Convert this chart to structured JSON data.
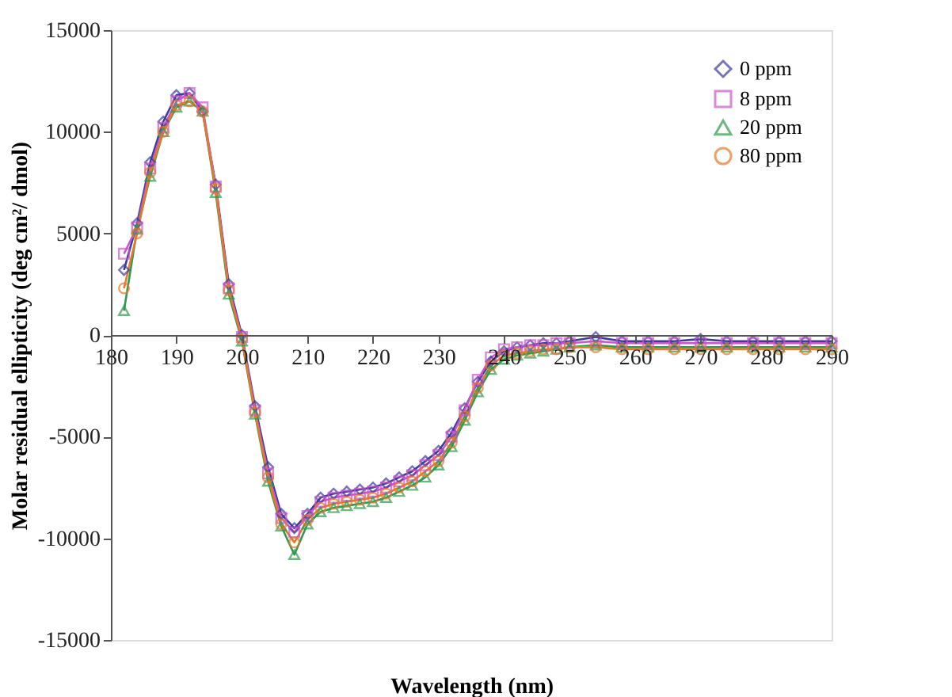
{
  "chart_data": {
    "type": "line",
    "xlabel": "Wavelength (nm)",
    "ylabel": "Molar residual ellipticity (deg cm²/ dmol)",
    "x": [
      182,
      184,
      186,
      188,
      190,
      192,
      194,
      196,
      198,
      200,
      202,
      204,
      206,
      208,
      210,
      212,
      214,
      216,
      218,
      220,
      222,
      224,
      226,
      228,
      230,
      232,
      234,
      236,
      238,
      240,
      242,
      244,
      246,
      248,
      250,
      254,
      258,
      262,
      266,
      270,
      274,
      278,
      282,
      286,
      290
    ],
    "series": [
      {
        "name": "0 ppm",
        "color": "#3c3c9c",
        "marker": "diamond",
        "values": [
          3200,
          5500,
          8500,
          10500,
          11800,
          11900,
          11000,
          7400,
          2500,
          0,
          -3500,
          -6500,
          -8800,
          -9500,
          -8800,
          -8000,
          -7800,
          -7700,
          -7600,
          -7500,
          -7300,
          -7000,
          -6700,
          -6200,
          -5700,
          -4800,
          -3600,
          -2300,
          -1300,
          -800,
          -600,
          -500,
          -400,
          -400,
          -300,
          -100,
          -300,
          -300,
          -300,
          -200,
          -300,
          -300,
          -300,
          -300,
          -300
        ]
      },
      {
        "name": "8 ppm",
        "color": "#cc55cc",
        "marker": "square",
        "values": [
          4000,
          5300,
          8200,
          10200,
          11500,
          11900,
          11200,
          7300,
          2300,
          -100,
          -3700,
          -6800,
          -9000,
          -9700,
          -8900,
          -8200,
          -8000,
          -7900,
          -7800,
          -7700,
          -7500,
          -7200,
          -6900,
          -6400,
          -5900,
          -5000,
          -3700,
          -2200,
          -1100,
          -700,
          -600,
          -500,
          -500,
          -400,
          -400,
          -300,
          -400,
          -400,
          -400,
          -400,
          -400,
          -400,
          -400,
          -400,
          -400
        ]
      },
      {
        "name": "20 ppm",
        "color": "#2e9a4e",
        "marker": "triangle",
        "values": [
          1200,
          5200,
          7800,
          10000,
          11200,
          11500,
          11000,
          7000,
          2000,
          -300,
          -3900,
          -7200,
          -9400,
          -10800,
          -9300,
          -8700,
          -8500,
          -8400,
          -8300,
          -8200,
          -8000,
          -7700,
          -7400,
          -7000,
          -6400,
          -5500,
          -4200,
          -2800,
          -1700,
          -1200,
          -1000,
          -900,
          -800,
          -700,
          -600,
          -500,
          -600,
          -600,
          -600,
          -600,
          -600,
          -600,
          -600,
          -600,
          -600
        ]
      },
      {
        "name": "80 ppm",
        "color": "#e8782a",
        "marker": "circle",
        "values": [
          2300,
          5000,
          8000,
          10000,
          11300,
          11500,
          11000,
          7200,
          2200,
          -200,
          -3800,
          -7000,
          -9300,
          -10200,
          -9100,
          -8500,
          -8300,
          -8200,
          -8100,
          -8000,
          -7800,
          -7500,
          -7200,
          -6700,
          -6200,
          -5300,
          -4000,
          -2600,
          -1500,
          -1000,
          -900,
          -800,
          -700,
          -700,
          -600,
          -600,
          -700,
          -700,
          -700,
          -700,
          -700,
          -700,
          -700,
          -700,
          -700
        ]
      }
    ],
    "xlim": [
      180,
      290
    ],
    "xticks": [
      180,
      190,
      200,
      210,
      220,
      230,
      240,
      250,
      260,
      270,
      280,
      290
    ],
    "ylim": [
      -15000,
      15000
    ],
    "yticks": [
      -15000,
      -10000,
      -5000,
      0,
      5000,
      10000,
      15000
    ],
    "grid": false,
    "legend": "top right"
  }
}
